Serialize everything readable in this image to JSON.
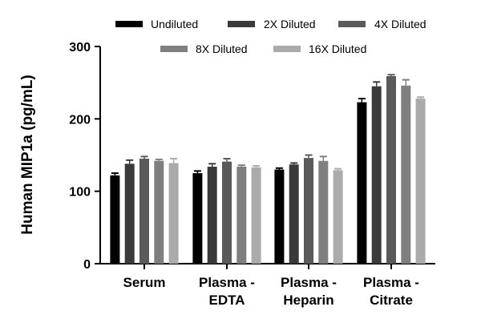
{
  "chart_data": {
    "type": "bar",
    "title": "",
    "xlabel": "",
    "ylabel": "Human MIP1a (pg/mL)",
    "ylim": [
      0,
      300
    ],
    "yticks": [
      0,
      100,
      200,
      300
    ],
    "legend_position": "top",
    "grid": false,
    "categories": [
      [
        "Serum"
      ],
      [
        "Plasma -",
        "EDTA"
      ],
      [
        "Plasma -",
        "Heparin"
      ],
      [
        "Plasma -",
        "Citrate"
      ]
    ],
    "series": [
      {
        "name": "Undiluted",
        "color": "#000000",
        "values": [
          122,
          125,
          130,
          223
        ],
        "errors": [
          3,
          3,
          2,
          5
        ]
      },
      {
        "name": "2X Diluted",
        "color": "#3a3a3a",
        "values": [
          138,
          134,
          137,
          245
        ],
        "errors": [
          5,
          4,
          2,
          6
        ]
      },
      {
        "name": "4X Diluted",
        "color": "#5a5a5a",
        "values": [
          145,
          141,
          146,
          259
        ],
        "errors": [
          3,
          4,
          4,
          2
        ]
      },
      {
        "name": "8X Diluted",
        "color": "#7f7f7f",
        "values": [
          142,
          134,
          142,
          246
        ],
        "errors": [
          2,
          2,
          6,
          8
        ]
      },
      {
        "name": "16X Diluted",
        "color": "#ababab",
        "values": [
          139,
          133,
          129,
          228
        ],
        "errors": [
          6,
          2,
          2,
          2
        ]
      }
    ]
  }
}
